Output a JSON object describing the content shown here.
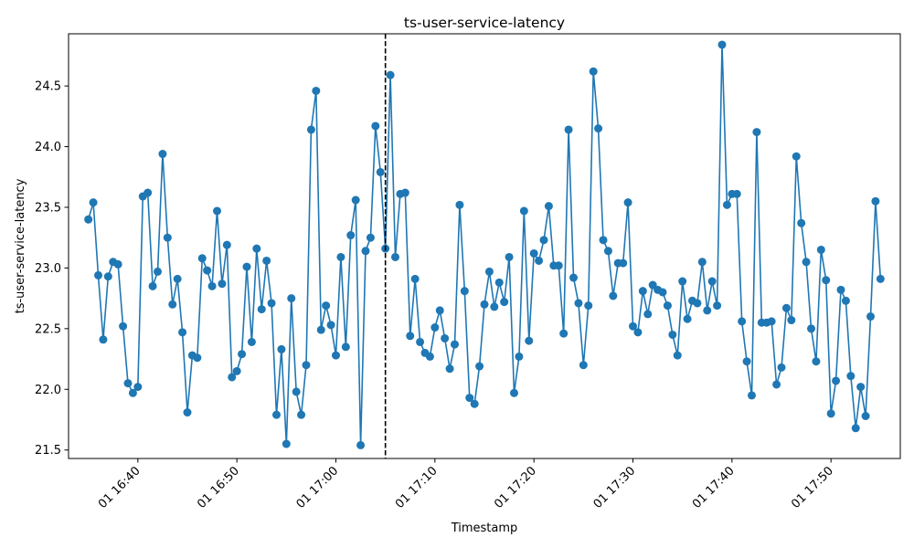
{
  "chart_data": {
    "type": "line",
    "title": "ts-user-service-latency",
    "xlabel": "Timestamp",
    "ylabel": "ts-user-service-latency",
    "x_start": "01 16:35:00",
    "x_step_seconds": 30,
    "xlim": [
      "01 16:33:00",
      "01 17:57:00"
    ],
    "ylim": [
      21.43,
      24.93
    ],
    "x_ticks": [
      "01 16:40",
      "01 16:50",
      "01 17:00",
      "01 17:10",
      "01 17:20",
      "01 17:30",
      "01 17:40",
      "01 17:50"
    ],
    "y_ticks": [
      21.5,
      22.0,
      22.5,
      23.0,
      23.5,
      24.0,
      24.5
    ],
    "vline_x": "01 17:05:00",
    "color": "#1f77b4",
    "grid": false,
    "series": [
      {
        "values": [
          23.4,
          23.54,
          22.94,
          22.41,
          22.93,
          23.05,
          23.03,
          22.52,
          22.05,
          21.97,
          22.02,
          23.59,
          23.62,
          22.85,
          22.97,
          23.94,
          23.25,
          22.7,
          22.91,
          22.47,
          21.81,
          22.28,
          22.26,
          23.08,
          22.98,
          22.85,
          23.47,
          22.87,
          23.19,
          22.1,
          22.15,
          22.29,
          23.01,
          22.39,
          23.16,
          22.66,
          23.06,
          22.71,
          21.79,
          22.33,
          21.55,
          22.75,
          21.98,
          21.79,
          22.2,
          24.14,
          24.46,
          22.49,
          22.69,
          22.53,
          22.28,
          23.09,
          22.35,
          23.27,
          23.56,
          21.54,
          23.14,
          23.25,
          24.17,
          23.79,
          23.16,
          24.59,
          23.09,
          23.61,
          23.62,
          22.44,
          22.91,
          22.39,
          22.3,
          22.27,
          22.51,
          22.65,
          22.42,
          22.17,
          22.37,
          23.52,
          22.81,
          21.93,
          21.88,
          22.19,
          22.7,
          22.97,
          22.68,
          22.88,
          22.72,
          23.09,
          21.97,
          22.27,
          23.47,
          22.4,
          23.12,
          23.06,
          23.23,
          23.51,
          23.02,
          23.02,
          22.46,
          24.14,
          22.92,
          22.71,
          22.2,
          22.69,
          24.62,
          24.15,
          23.23,
          23.14,
          22.77,
          23.04,
          23.04,
          23.54,
          22.52,
          22.47,
          22.81,
          22.62,
          22.86,
          22.82,
          22.8,
          22.69,
          22.45,
          22.28,
          22.89,
          22.58,
          22.73,
          22.71,
          23.05,
          22.65,
          22.89,
          22.69,
          24.84,
          23.52,
          23.61,
          23.61,
          22.56,
          22.23,
          21.95,
          24.12,
          22.55,
          22.55,
          22.56,
          22.04,
          22.18,
          22.67,
          22.57,
          23.92,
          23.37,
          23.05,
          22.5,
          22.23,
          23.15,
          22.9,
          21.8,
          22.07,
          22.82,
          22.73,
          22.11,
          21.68,
          22.02,
          21.78,
          22.6,
          23.55,
          22.91
        ]
      }
    ]
  }
}
